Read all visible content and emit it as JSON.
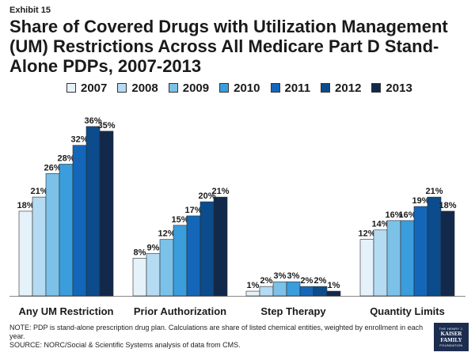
{
  "header": {
    "exhibit": "Exhibit 15",
    "title": "Share of Covered Drugs with Utilization Management (UM) Restrictions Across All Medicare Part D Stand-Alone PDPs, 2007-2013"
  },
  "footer": {
    "note": "NOTE: PDP is stand-alone prescription drug plan. Calculations are share of listed chemical entities, weighted by enrollment in each year.",
    "source": "SOURCE: NORC/Social & Scientific Systems analysis of data from CMS."
  },
  "logo": {
    "line1": "THE HENRY J.",
    "line2": "KAISER",
    "line3": "FAMILY",
    "line4": "FOUNDATION"
  },
  "colors": {
    "series": [
      "#e6f2fa",
      "#b5dbf3",
      "#7cc1e8",
      "#3b9ddc",
      "#1467b8",
      "#0c4c8c",
      "#13294b"
    ]
  },
  "chart_data": {
    "type": "bar",
    "title": "Share of Covered Drugs with Utilization Management (UM) Restrictions Across All Medicare Part D Stand-Alone PDPs, 2007-2013",
    "categories": [
      "Any UM Restriction",
      "Prior Authorization",
      "Step Therapy",
      "Quantity Limits"
    ],
    "series": [
      {
        "name": "2007",
        "values": [
          18,
          8,
          1,
          12
        ]
      },
      {
        "name": "2008",
        "values": [
          21,
          9,
          2,
          14
        ]
      },
      {
        "name": "2009",
        "values": [
          26,
          12,
          3,
          16
        ]
      },
      {
        "name": "2010",
        "values": [
          28,
          15,
          3,
          16
        ]
      },
      {
        "name": "2011",
        "values": [
          32,
          17,
          2,
          19
        ]
      },
      {
        "name": "2012",
        "values": [
          36,
          20,
          2,
          21
        ]
      },
      {
        "name": "2013",
        "values": [
          35,
          21,
          1,
          18
        ]
      }
    ],
    "value_suffix": "%",
    "xlabel": "",
    "ylabel": "",
    "ylim": [
      0,
      38
    ],
    "legend": "top",
    "grid": false
  }
}
